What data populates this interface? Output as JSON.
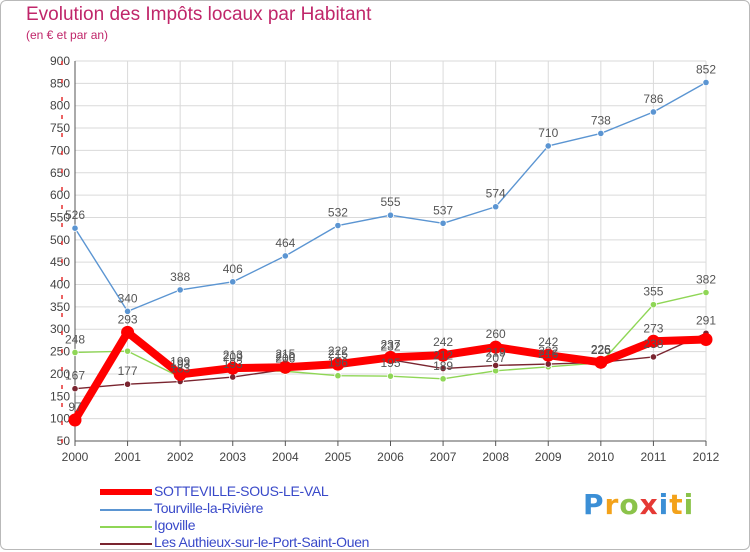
{
  "chart_data": {
    "type": "line",
    "title": "Evolution des Impôts locaux par Habitant",
    "subtitle": "(en € et par an)",
    "xlabel": "",
    "ylabel": "",
    "ylim": [
      50,
      900
    ],
    "yticks": [
      "50",
      "100",
      "150",
      "200",
      "250",
      "300",
      "350",
      "400",
      "450",
      "500",
      "550",
      "600",
      "650",
      "700",
      "750",
      "800",
      "850",
      "900"
    ],
    "categories": [
      "2000",
      "2001",
      "2002",
      "2003",
      "2004",
      "2005",
      "2006",
      "2007",
      "2008",
      "2009",
      "2010",
      "2011",
      "2012"
    ],
    "series": [
      {
        "name": "SOTTEVILLE-SOUS-LE-VAL",
        "color": "#ff0000",
        "values": [
          97,
          293,
          199,
          213,
          215,
          222,
          237,
          242,
          260,
          242,
          226,
          273,
          277
        ],
        "labels": [
          "97",
          "293",
          "199",
          "213",
          "215",
          "222",
          "237",
          "242",
          "260",
          "242",
          "226",
          "273",
          ""
        ]
      },
      {
        "name": "Tourville-la-Rivière",
        "color": "#5b95d2",
        "values": [
          526,
          340,
          388,
          406,
          464,
          532,
          555,
          537,
          574,
          710,
          738,
          786,
          852
        ],
        "labels": [
          "526",
          "340",
          "388",
          "406",
          "464",
          "532",
          "555",
          "537",
          "574",
          "710",
          "738",
          "786",
          "852"
        ]
      },
      {
        "name": "Igoville",
        "color": "#8fd656",
        "values": [
          248,
          251,
          193,
          209,
          206,
          196,
          195,
          189,
          207,
          216,
          225,
          355,
          382
        ],
        "labels": [
          "248",
          "",
          "193",
          "209",
          "206",
          "196",
          "195",
          "189",
          "207",
          "216",
          "225",
          "355",
          "382"
        ]
      },
      {
        "name": "Les Authieux-sur-le-Port-Saint-Ouen",
        "color": "#7a2530",
        "values": [
          167,
          177,
          183,
          193,
          210,
          215,
          232,
          212,
          219,
          222,
          226,
          238,
          291
        ],
        "labels": [
          "167",
          "177",
          "183",
          "193",
          "210",
          "215",
          "232",
          "212",
          "219",
          "222",
          "226",
          "238",
          "291"
        ]
      }
    ]
  },
  "legend": {
    "items": [
      {
        "label": "SOTTEVILLE-SOUS-LE-VAL",
        "color": "#ff0000"
      },
      {
        "label": "Tourville-la-Rivière",
        "color": "#5b95d2"
      },
      {
        "label": "Igoville",
        "color": "#8fd656"
      },
      {
        "label": "Les Authieux-sur-le-Port-Saint-Ouen",
        "color": "#7a2530"
      }
    ]
  },
  "logo": {
    "letters": [
      "P",
      "r",
      "o",
      "x",
      "i",
      "t",
      "i"
    ],
    "colors": [
      "#3b8fd6",
      "#f3a21a",
      "#8bc34a",
      "#e53935",
      "#3b8fd6",
      "#f3a21a",
      "#8bc34a"
    ]
  }
}
